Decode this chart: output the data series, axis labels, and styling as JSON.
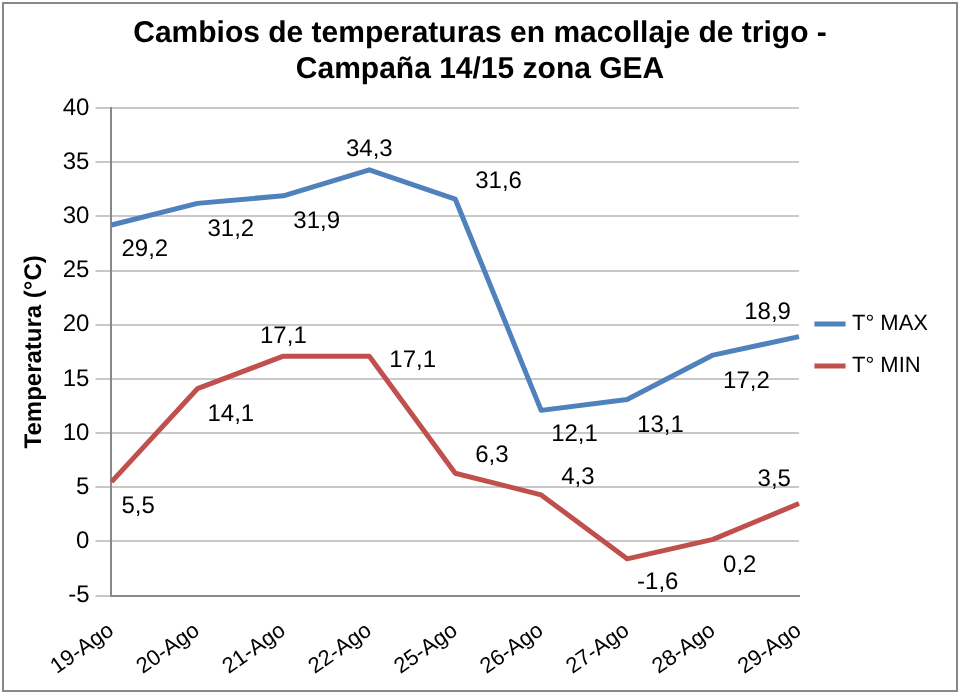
{
  "chart_data": {
    "type": "line",
    "title": "Cambios de temperaturas en macollaje de trigo -\nCampaña 14/15 zona GEA",
    "ylabel": "Temperatura (°C)",
    "categories": [
      "19-Ago",
      "20-Ago",
      "21-Ago",
      "22-Ago",
      "25-Ago",
      "26-Ago",
      "27-Ago",
      "28-Ago",
      "29-Ago"
    ],
    "series": [
      {
        "name": "T° MAX",
        "color": "#4f81bd",
        "values": [
          29.2,
          31.2,
          31.9,
          34.3,
          31.6,
          12.1,
          13.1,
          17.2,
          18.9
        ],
        "value_labels": [
          "29,2",
          "31,2",
          "31,9",
          "34,3",
          "31,6",
          "12,1",
          "13,1",
          "17,2",
          "18,9"
        ]
      },
      {
        "name": "T° MIN",
        "color": "#c0504d",
        "values": [
          5.5,
          14.1,
          17.1,
          17.1,
          6.3,
          4.3,
          -1.6,
          0.2,
          3.5
        ],
        "value_labels": [
          "5,5",
          "14,1",
          "17,1",
          "17,1",
          "6,3",
          "4,3",
          "-1,6",
          "0,2",
          "3,5"
        ]
      }
    ],
    "ylim": [
      -5,
      40
    ],
    "yticks": [
      -5,
      0,
      5,
      10,
      15,
      20,
      25,
      30,
      35,
      40
    ],
    "grid": "y",
    "legend": "right",
    "marker": "none",
    "line_style": "solid"
  }
}
